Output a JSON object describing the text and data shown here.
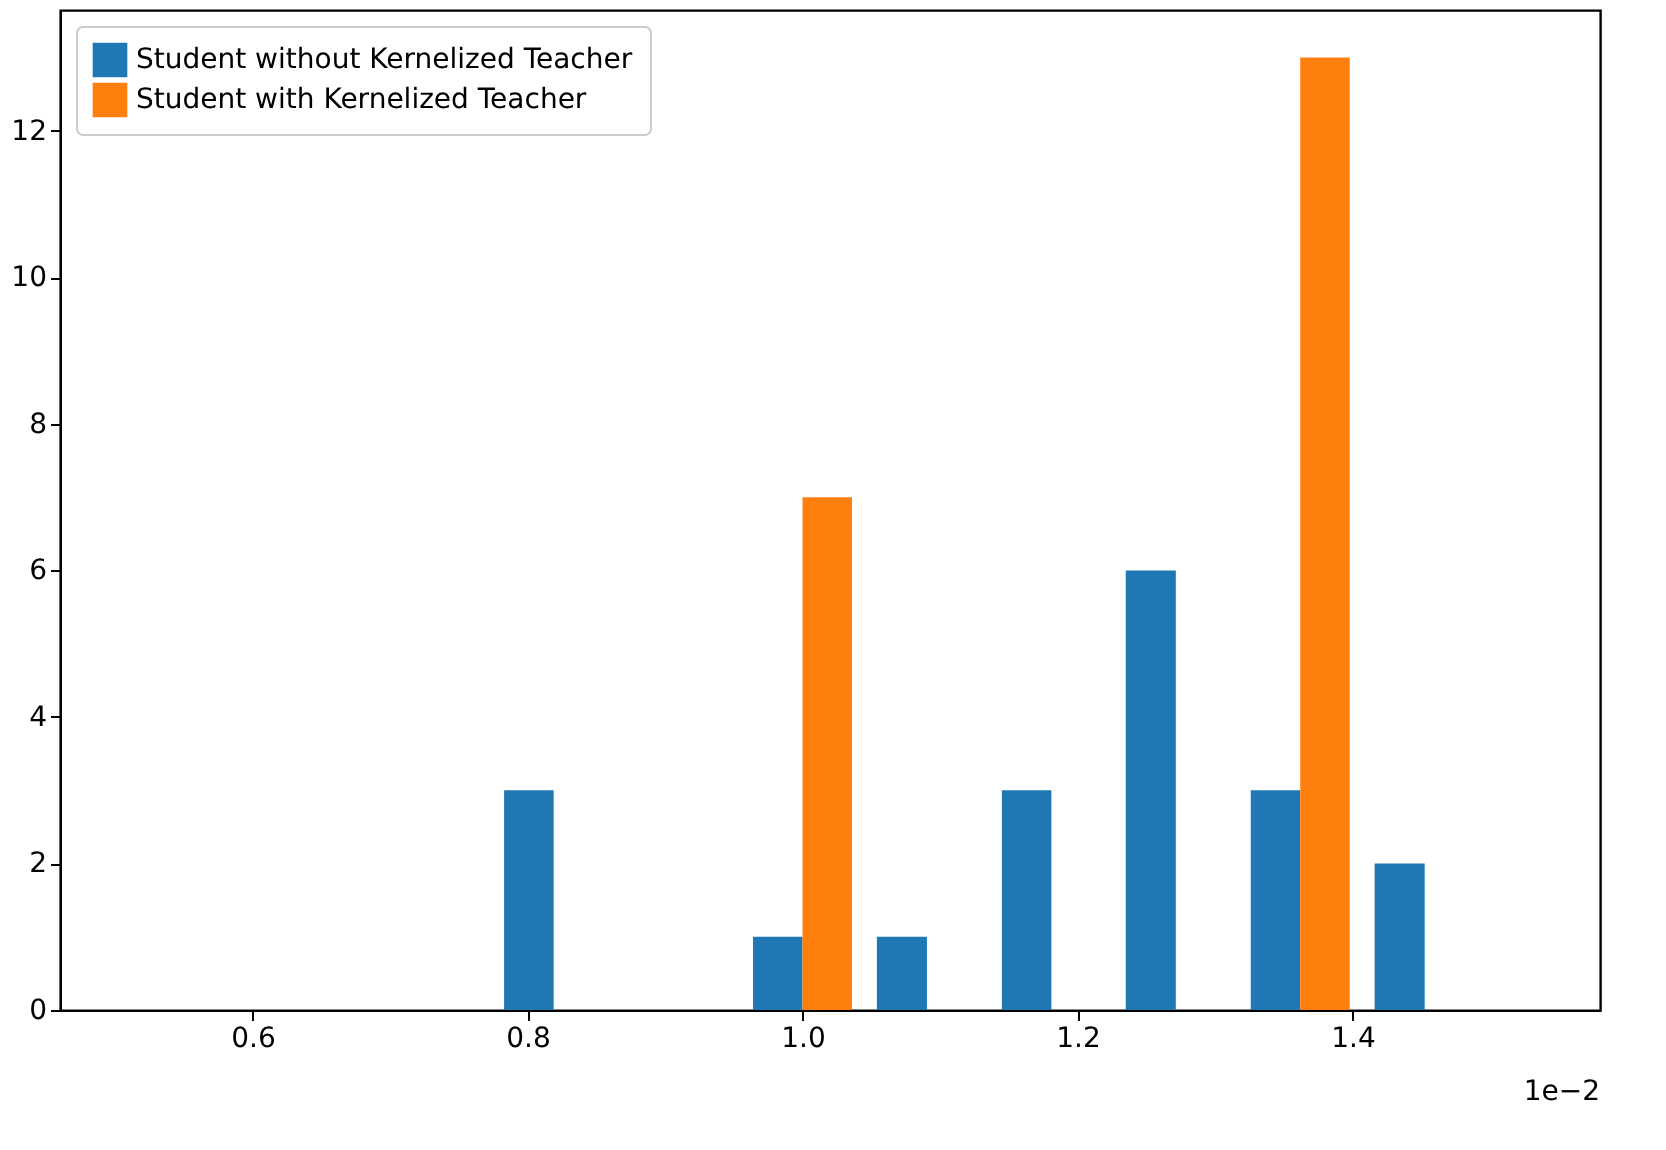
{
  "chart_data": {
    "type": "histogram",
    "bins": [
      0.774,
      0.864,
      0.955,
      1.045,
      1.136,
      1.226,
      1.317,
      1.407,
      1.498
    ],
    "series": [
      {
        "name": "Student without Kernelized Teacher",
        "color": "#1f77b4",
        "values": [
          3,
          0,
          1,
          1,
          3,
          6,
          3,
          2
        ]
      },
      {
        "name": "Student with Kernelized Teacher",
        "color": "#ff7f0e",
        "values": [
          0,
          0,
          7,
          0,
          0,
          0,
          13,
          0
        ]
      }
    ],
    "xlim": [
      0.46,
      1.58
    ],
    "xticks": [
      {
        "value": 0.6,
        "label": "0.6"
      },
      {
        "value": 0.8,
        "label": "0.8"
      },
      {
        "value": 1.0,
        "label": "1.0"
      },
      {
        "value": 1.2,
        "label": "1.2"
      },
      {
        "value": 1.4,
        "label": "1.4"
      }
    ],
    "ylim": [
      0,
      13.65
    ],
    "yticks": [
      0,
      2,
      4,
      6,
      8,
      10,
      12
    ],
    "annotations": [
      "1e−2"
    ],
    "grid": false,
    "legend": "top left"
  }
}
